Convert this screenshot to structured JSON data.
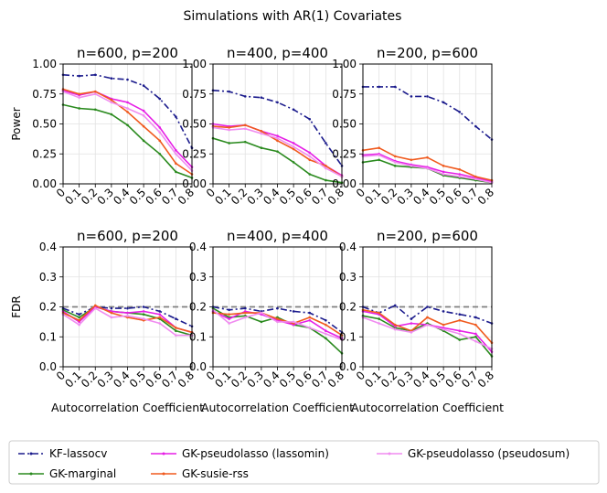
{
  "figure": {
    "title": "Simulations with AR(1) Covariates"
  },
  "legend": {
    "placement": "bottom-center",
    "entries": [
      {
        "key": "kf",
        "label": "KF-lassocv"
      },
      {
        "key": "gkm",
        "label": "GK-marginal"
      },
      {
        "key": "gkpl",
        "label": "GK-pseudolasso (lassomin)"
      },
      {
        "key": "gks",
        "label": "GK-susie-rss"
      },
      {
        "key": "gkps",
        "label": "GK-pseudolasso (pseudosum)"
      }
    ]
  },
  "series_styles": {
    "kf": {
      "color": "#1a1a8c",
      "dash": "dashdot"
    },
    "gkm": {
      "color": "#2a8a1e",
      "dash": "solid"
    },
    "gkpl": {
      "color": "#e61ee6",
      "dash": "solid"
    },
    "gks": {
      "color": "#f05a1e",
      "dash": "solid"
    },
    "gkps": {
      "color": "#f08cf0",
      "dash": "solid"
    }
  },
  "chart_data": [
    {
      "type": "line",
      "title": "n=600, p=200",
      "ylabel": "Power",
      "xlabel": "",
      "xlim": [
        0,
        0.8
      ],
      "ylim": [
        0,
        1
      ],
      "yticks": [
        "0.00",
        "0.25",
        "0.50",
        "0.75",
        "1.00"
      ],
      "categories": [
        "0",
        "0.1",
        "0.2",
        "0.3",
        "0.4",
        "0.5",
        "0.6",
        "0.7",
        "0.8"
      ],
      "grid": true,
      "hline": null,
      "series": [
        {
          "key": "kf",
          "values": [
            0.91,
            0.9,
            0.91,
            0.88,
            0.87,
            0.82,
            0.71,
            0.56,
            0.3
          ]
        },
        {
          "key": "gkm",
          "values": [
            0.66,
            0.63,
            0.62,
            0.58,
            0.49,
            0.36,
            0.25,
            0.1,
            0.05
          ]
        },
        {
          "key": "gkpl",
          "values": [
            0.78,
            0.74,
            0.77,
            0.71,
            0.68,
            0.61,
            0.47,
            0.28,
            0.14
          ]
        },
        {
          "key": "gks",
          "values": [
            0.79,
            0.75,
            0.77,
            0.7,
            0.6,
            0.48,
            0.36,
            0.17,
            0.08
          ]
        },
        {
          "key": "gkps",
          "values": [
            0.77,
            0.72,
            0.75,
            0.68,
            0.63,
            0.57,
            0.43,
            0.25,
            0.11
          ]
        }
      ]
    },
    {
      "type": "line",
      "title": "n=400, p=400",
      "ylabel": "",
      "xlabel": "",
      "xlim": [
        0,
        0.8
      ],
      "ylim": [
        0,
        1
      ],
      "yticks": [
        "0.00",
        "0.25",
        "0.50",
        "0.75",
        "1.00"
      ],
      "categories": [
        "0",
        "0.1",
        "0.2",
        "0.3",
        "0.4",
        "0.5",
        "0.6",
        "0.7",
        "0.8"
      ],
      "grid": true,
      "hline": null,
      "series": [
        {
          "key": "kf",
          "values": [
            0.78,
            0.77,
            0.73,
            0.72,
            0.68,
            0.62,
            0.54,
            0.34,
            0.15
          ]
        },
        {
          "key": "gkm",
          "values": [
            0.38,
            0.34,
            0.35,
            0.3,
            0.27,
            0.18,
            0.08,
            0.03,
            0.01
          ]
        },
        {
          "key": "gkpl",
          "values": [
            0.5,
            0.48,
            0.49,
            0.44,
            0.4,
            0.34,
            0.26,
            0.15,
            0.07
          ]
        },
        {
          "key": "gks",
          "values": [
            0.48,
            0.47,
            0.49,
            0.44,
            0.36,
            0.29,
            0.2,
            0.15,
            0.06
          ]
        },
        {
          "key": "gkps",
          "values": [
            0.47,
            0.45,
            0.46,
            0.42,
            0.38,
            0.31,
            0.23,
            0.13,
            0.06
          ]
        }
      ]
    },
    {
      "type": "line",
      "title": "n=200, p=600",
      "ylabel": "",
      "xlabel": "",
      "xlim": [
        0,
        0.8
      ],
      "ylim": [
        0,
        1
      ],
      "yticks": [
        "0.00",
        "0.25",
        "0.50",
        "0.75",
        "1.00"
      ],
      "categories": [
        "0",
        "0.1",
        "0.2",
        "0.3",
        "0.4",
        "0.5",
        "0.6",
        "0.7",
        "0.8"
      ],
      "grid": true,
      "hline": null,
      "series": [
        {
          "key": "kf",
          "values": [
            0.81,
            0.81,
            0.81,
            0.73,
            0.73,
            0.68,
            0.6,
            0.48,
            0.37
          ]
        },
        {
          "key": "gkm",
          "values": [
            0.18,
            0.2,
            0.15,
            0.14,
            0.13,
            0.07,
            0.05,
            0.03,
            0.01
          ]
        },
        {
          "key": "gkpl",
          "values": [
            0.24,
            0.25,
            0.19,
            0.16,
            0.14,
            0.1,
            0.08,
            0.05,
            0.02
          ]
        },
        {
          "key": "gks",
          "values": [
            0.28,
            0.3,
            0.23,
            0.2,
            0.22,
            0.15,
            0.12,
            0.06,
            0.03
          ]
        },
        {
          "key": "gkps",
          "values": [
            0.23,
            0.24,
            0.18,
            0.15,
            0.13,
            0.08,
            0.06,
            0.04,
            0.01
          ]
        }
      ]
    },
    {
      "type": "line",
      "title": "n=600, p=200",
      "ylabel": "FDR",
      "xlabel": "Autocorrelation Coefficient",
      "xlim": [
        0,
        0.8
      ],
      "ylim": [
        0,
        0.4
      ],
      "yticks": [
        "0.0",
        "0.1",
        "0.2",
        "0.3",
        "0.4"
      ],
      "categories": [
        "0",
        "0.1",
        "0.2",
        "0.3",
        "0.4",
        "0.5",
        "0.6",
        "0.7",
        "0.8"
      ],
      "grid": true,
      "hline": 0.2,
      "series": [
        {
          "key": "kf",
          "values": [
            0.195,
            0.175,
            0.2,
            0.195,
            0.195,
            0.2,
            0.185,
            0.16,
            0.135
          ]
        },
        {
          "key": "gkm",
          "values": [
            0.19,
            0.165,
            0.2,
            0.185,
            0.18,
            0.175,
            0.16,
            0.12,
            0.105
          ]
        },
        {
          "key": "gkpl",
          "values": [
            0.185,
            0.15,
            0.2,
            0.185,
            0.18,
            0.185,
            0.175,
            0.13,
            0.115
          ]
        },
        {
          "key": "gks",
          "values": [
            0.18,
            0.155,
            0.205,
            0.18,
            0.165,
            0.155,
            0.165,
            0.13,
            0.115
          ]
        },
        {
          "key": "gkps",
          "values": [
            0.175,
            0.14,
            0.195,
            0.165,
            0.17,
            0.16,
            0.145,
            0.105,
            0.105
          ]
        }
      ]
    },
    {
      "type": "line",
      "title": "n=400, p=400",
      "ylabel": "",
      "xlabel": "Autocorrelation Coefficient",
      "xlim": [
        0,
        0.8
      ],
      "ylim": [
        0,
        0.4
      ],
      "yticks": [
        "0.0",
        "0.1",
        "0.2",
        "0.3",
        "0.4"
      ],
      "categories": [
        "0",
        "0.1",
        "0.2",
        "0.3",
        "0.4",
        "0.5",
        "0.6",
        "0.7",
        "0.8"
      ],
      "grid": true,
      "hline": 0.2,
      "series": [
        {
          "key": "kf",
          "values": [
            0.2,
            0.19,
            0.195,
            0.185,
            0.195,
            0.185,
            0.18,
            0.155,
            0.115
          ]
        },
        {
          "key": "gkm",
          "values": [
            0.195,
            0.165,
            0.17,
            0.15,
            0.165,
            0.14,
            0.13,
            0.095,
            0.045
          ]
        },
        {
          "key": "gkpl",
          "values": [
            0.185,
            0.16,
            0.185,
            0.175,
            0.155,
            0.14,
            0.155,
            0.12,
            0.095
          ]
        },
        {
          "key": "gks",
          "values": [
            0.18,
            0.175,
            0.18,
            0.18,
            0.16,
            0.145,
            0.165,
            0.14,
            0.105
          ]
        },
        {
          "key": "gkps",
          "values": [
            0.19,
            0.145,
            0.165,
            0.18,
            0.15,
            0.15,
            0.13,
            0.11,
            0.09
          ]
        }
      ]
    },
    {
      "type": "line",
      "title": "n=200, p=600",
      "ylabel": "",
      "xlabel": "Autocorrelation Coefficient",
      "xlim": [
        0,
        0.8
      ],
      "ylim": [
        0,
        0.4
      ],
      "yticks": [
        "0.0",
        "0.1",
        "0.2",
        "0.3",
        "0.4"
      ],
      "categories": [
        "0",
        "0.1",
        "0.2",
        "0.3",
        "0.4",
        "0.5",
        "0.6",
        "0.7",
        "0.8"
      ],
      "grid": true,
      "hline": 0.2,
      "series": [
        {
          "key": "kf",
          "values": [
            0.2,
            0.18,
            0.205,
            0.16,
            0.2,
            0.185,
            0.175,
            0.165,
            0.145
          ]
        },
        {
          "key": "gkm",
          "values": [
            0.17,
            0.16,
            0.13,
            0.12,
            0.145,
            0.12,
            0.09,
            0.1,
            0.035
          ]
        },
        {
          "key": "gkpl",
          "values": [
            0.185,
            0.175,
            0.135,
            0.145,
            0.14,
            0.13,
            0.12,
            0.11,
            0.05
          ]
        },
        {
          "key": "gks",
          "values": [
            0.19,
            0.18,
            0.14,
            0.12,
            0.165,
            0.14,
            0.155,
            0.14,
            0.08
          ]
        },
        {
          "key": "gkps",
          "values": [
            0.165,
            0.145,
            0.125,
            0.115,
            0.14,
            0.125,
            0.11,
            0.085,
            0.06
          ]
        }
      ]
    }
  ]
}
